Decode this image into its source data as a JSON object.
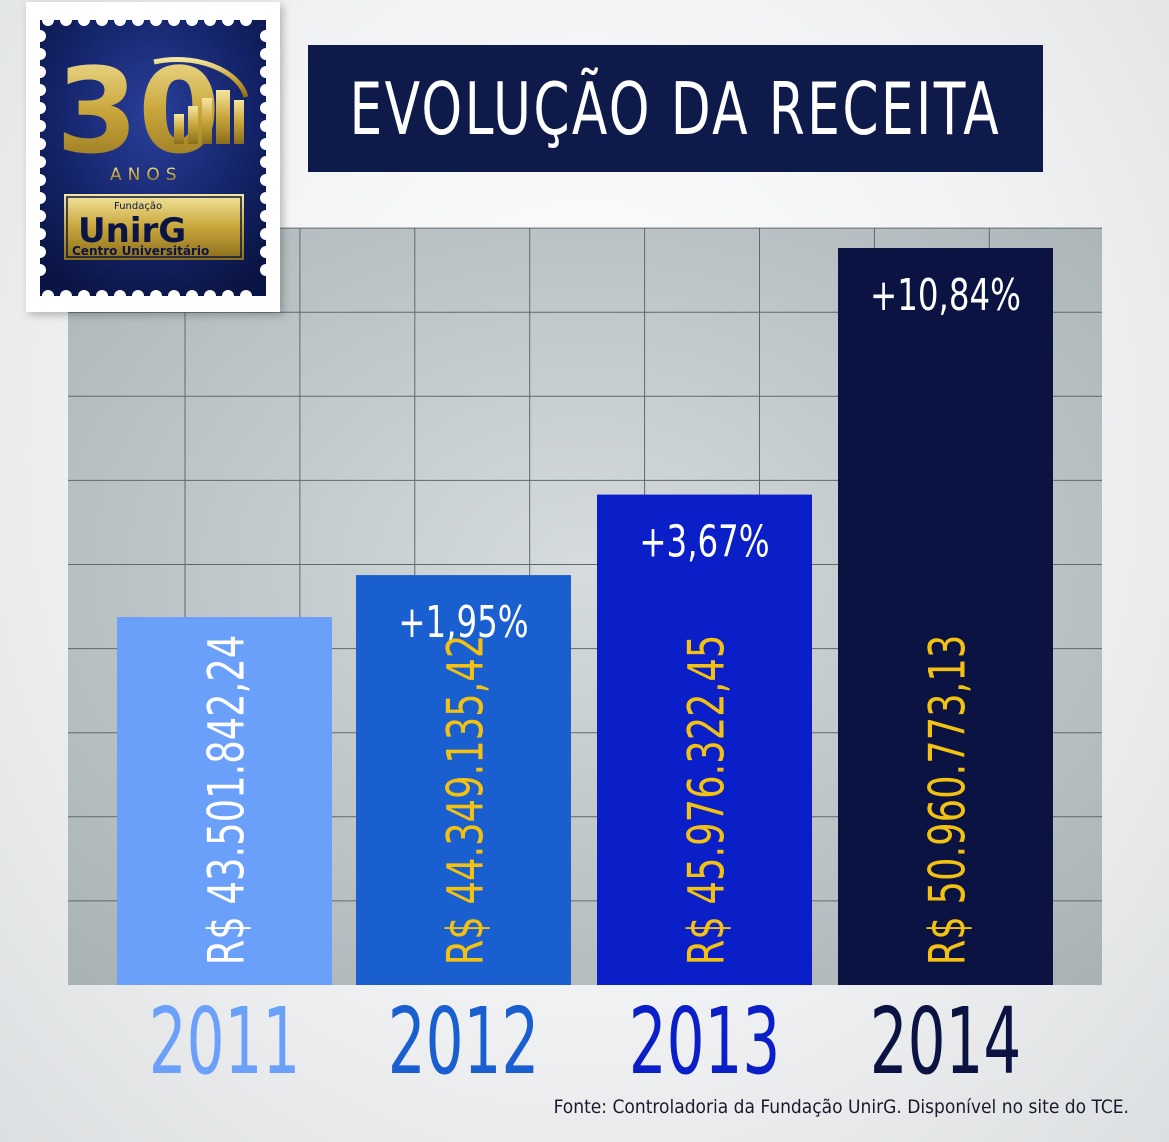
{
  "title": "EVOLUÇÃO DA RECEITA",
  "source": "Fonte: Controladoria da Fundação UnirG. Disponível no site do TCE.",
  "logo": {
    "number": "30",
    "anos": "ANOS",
    "fundacao": "Fundação",
    "brand": "UnirG",
    "subtitle": "Centro Universitário"
  },
  "colors": {
    "title_bg": "#0d1a4a",
    "grid_bg": "#a8b1b4",
    "grid_line": "#5f6a6e",
    "value_light": "#ffffff",
    "value_gold": "#f3c112",
    "growth_text": "#ffffff"
  },
  "chart_data": {
    "type": "bar",
    "categories": [
      "2011",
      "2012",
      "2013",
      "2014"
    ],
    "values": [
      43501842.24,
      44349135.42,
      45976322.45,
      50960773.13
    ],
    "value_labels": [
      "R$ 43.501.842,24",
      "R$ 44.349.135,42",
      "R$ 45.976.322,45",
      "R$ 50.960.773,13"
    ],
    "growth_labels": [
      "",
      "+1,95%",
      "+3,67%",
      "+10,84%"
    ],
    "bar_colors": [
      "#6aa0fa",
      "#1a5fd0",
      "#0a1fc8",
      "#0b1342"
    ],
    "year_colors": [
      "#6aa0fa",
      "#1a5fd0",
      "#0a1fc8",
      "#0b1342"
    ],
    "value_text_colors": [
      "#ffffff",
      "#f3c112",
      "#f3c112",
      "#f3c112"
    ],
    "title": "EVOLUÇÃO DA RECEITA",
    "xlabel": "",
    "ylabel": "",
    "grid": true,
    "legend": "none"
  }
}
